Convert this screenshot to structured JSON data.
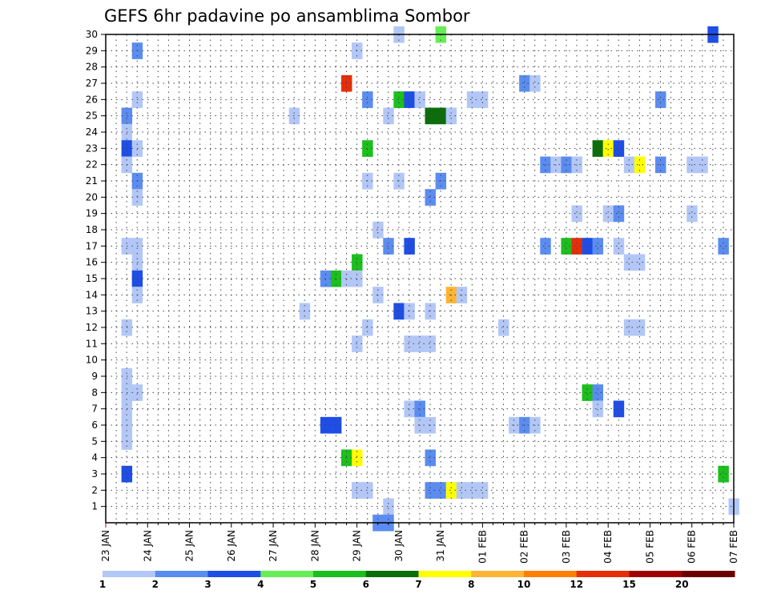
{
  "chart_data": {
    "type": "heatmap",
    "title": "GEFS 6hr padavine po ansamblima Sombor",
    "xlabel": "",
    "ylabel": "",
    "x_range_hours": [
      0,
      360
    ],
    "ylim": [
      0,
      30
    ],
    "grid": true,
    "y_ticks": [
      1,
      2,
      3,
      4,
      5,
      6,
      7,
      8,
      9,
      10,
      11,
      12,
      13,
      14,
      15,
      16,
      17,
      18,
      19,
      20,
      21,
      22,
      23,
      24,
      25,
      26,
      27,
      28,
      29,
      30
    ],
    "x_ticks": [
      {
        "hour": 0,
        "label": "23 JAN"
      },
      {
        "hour": 24,
        "label": "24 JAN"
      },
      {
        "hour": 48,
        "label": "25 JAN"
      },
      {
        "hour": 72,
        "label": "26 JAN"
      },
      {
        "hour": 96,
        "label": "27 JAN"
      },
      {
        "hour": 120,
        "label": "28 JAN"
      },
      {
        "hour": 144,
        "label": "29 JAN"
      },
      {
        "hour": 168,
        "label": "30 JAN"
      },
      {
        "hour": 192,
        "label": "31 JAN"
      },
      {
        "hour": 216,
        "label": "01 FEB"
      },
      {
        "hour": 240,
        "label": "02 FEB"
      },
      {
        "hour": 264,
        "label": "03 FEB"
      },
      {
        "hour": 288,
        "label": "04 FEB"
      },
      {
        "hour": 312,
        "label": "05 FEB"
      },
      {
        "hour": 336,
        "label": "06 FEB"
      },
      {
        "hour": 360,
        "label": "07 FEB"
      }
    ],
    "colorbar": {
      "labels": [
        "1",
        "2",
        "3",
        "4",
        "5",
        "6",
        "7",
        "8",
        "10",
        "12",
        "15",
        "20"
      ],
      "colors": [
        "#b3c7f7",
        "#5b8cf0",
        "#1e4ee6",
        "#66ee55",
        "#1cbf1c",
        "#0b6e0b",
        "#ffff00",
        "#ffb433",
        "#ff7f00",
        "#e62e0b",
        "#a00000",
        "#6b0000"
      ]
    },
    "cells": [
      [
        30,
        168,
        1
      ],
      [
        30,
        192,
        4
      ],
      [
        30,
        348,
        3
      ],
      [
        29,
        18,
        2
      ],
      [
        29,
        144,
        1
      ],
      [
        27,
        138,
        10
      ],
      [
        27,
        240,
        2
      ],
      [
        27,
        246,
        1
      ],
      [
        26,
        18,
        1
      ],
      [
        26,
        150,
        2
      ],
      [
        26,
        168,
        5
      ],
      [
        26,
        174,
        3
      ],
      [
        26,
        180,
        1
      ],
      [
        26,
        210,
        1
      ],
      [
        26,
        216,
        1
      ],
      [
        26,
        318,
        2
      ],
      [
        25,
        12,
        2
      ],
      [
        25,
        108,
        1
      ],
      [
        25,
        162,
        1
      ],
      [
        25,
        186,
        6
      ],
      [
        25,
        192,
        6
      ],
      [
        25,
        198,
        1
      ],
      [
        24,
        12,
        1
      ],
      [
        23,
        12,
        3
      ],
      [
        23,
        18,
        1
      ],
      [
        23,
        150,
        5
      ],
      [
        23,
        282,
        6
      ],
      [
        23,
        288,
        7
      ],
      [
        23,
        294,
        3
      ],
      [
        22,
        12,
        1
      ],
      [
        22,
        252,
        2
      ],
      [
        22,
        258,
        1
      ],
      [
        22,
        264,
        2
      ],
      [
        22,
        270,
        1
      ],
      [
        22,
        300,
        1
      ],
      [
        22,
        306,
        7
      ],
      [
        22,
        318,
        2
      ],
      [
        22,
        336,
        1
      ],
      [
        22,
        342,
        1
      ],
      [
        21,
        18,
        2
      ],
      [
        21,
        150,
        1
      ],
      [
        21,
        168,
        1
      ],
      [
        21,
        192,
        2
      ],
      [
        20,
        18,
        1
      ],
      [
        20,
        186,
        2
      ],
      [
        19,
        270,
        1
      ],
      [
        19,
        288,
        1
      ],
      [
        19,
        294,
        2
      ],
      [
        19,
        336,
        1
      ],
      [
        18,
        156,
        1
      ],
      [
        17,
        12,
        1
      ],
      [
        17,
        18,
        1
      ],
      [
        17,
        162,
        2
      ],
      [
        17,
        174,
        3
      ],
      [
        17,
        252,
        2
      ],
      [
        17,
        264,
        5
      ],
      [
        17,
        270,
        10
      ],
      [
        17,
        276,
        3
      ],
      [
        17,
        282,
        2
      ],
      [
        17,
        294,
        1
      ],
      [
        17,
        354,
        2
      ],
      [
        16,
        18,
        1
      ],
      [
        16,
        144,
        5
      ],
      [
        16,
        300,
        1
      ],
      [
        16,
        306,
        1
      ],
      [
        15,
        18,
        3
      ],
      [
        15,
        126,
        2
      ],
      [
        15,
        132,
        5
      ],
      [
        15,
        138,
        1
      ],
      [
        15,
        144,
        1
      ],
      [
        14,
        18,
        1
      ],
      [
        14,
        156,
        1
      ],
      [
        14,
        198,
        8
      ],
      [
        14,
        204,
        1
      ],
      [
        13,
        114,
        1
      ],
      [
        13,
        168,
        3
      ],
      [
        13,
        174,
        1
      ],
      [
        13,
        186,
        1
      ],
      [
        12,
        12,
        1
      ],
      [
        12,
        150,
        1
      ],
      [
        12,
        228,
        1
      ],
      [
        12,
        300,
        1
      ],
      [
        12,
        306,
        1
      ],
      [
        11,
        144,
        1
      ],
      [
        11,
        174,
        1
      ],
      [
        11,
        180,
        1
      ],
      [
        11,
        186,
        1
      ],
      [
        9,
        12,
        1
      ],
      [
        8,
        12,
        1
      ],
      [
        8,
        18,
        1
      ],
      [
        8,
        276,
        5
      ],
      [
        8,
        282,
        2
      ],
      [
        7,
        12,
        1
      ],
      [
        7,
        174,
        1
      ],
      [
        7,
        180,
        2
      ],
      [
        7,
        282,
        1
      ],
      [
        7,
        294,
        3
      ],
      [
        6,
        12,
        1
      ],
      [
        6,
        126,
        3
      ],
      [
        6,
        132,
        3
      ],
      [
        6,
        180,
        1
      ],
      [
        6,
        186,
        1
      ],
      [
        6,
        234,
        1
      ],
      [
        6,
        240,
        2
      ],
      [
        6,
        246,
        1
      ],
      [
        5,
        12,
        1
      ],
      [
        4,
        138,
        5
      ],
      [
        4,
        144,
        7
      ],
      [
        4,
        186,
        2
      ],
      [
        3,
        12,
        3
      ],
      [
        3,
        354,
        5
      ],
      [
        2,
        144,
        1
      ],
      [
        2,
        150,
        1
      ],
      [
        2,
        186,
        2
      ],
      [
        2,
        192,
        2
      ],
      [
        2,
        198,
        7
      ],
      [
        2,
        204,
        1
      ],
      [
        2,
        210,
        1
      ],
      [
        2,
        216,
        1
      ],
      [
        1,
        162,
        1
      ],
      [
        1,
        360,
        1
      ],
      [
        0,
        156,
        2
      ],
      [
        0,
        162,
        2
      ]
    ]
  }
}
